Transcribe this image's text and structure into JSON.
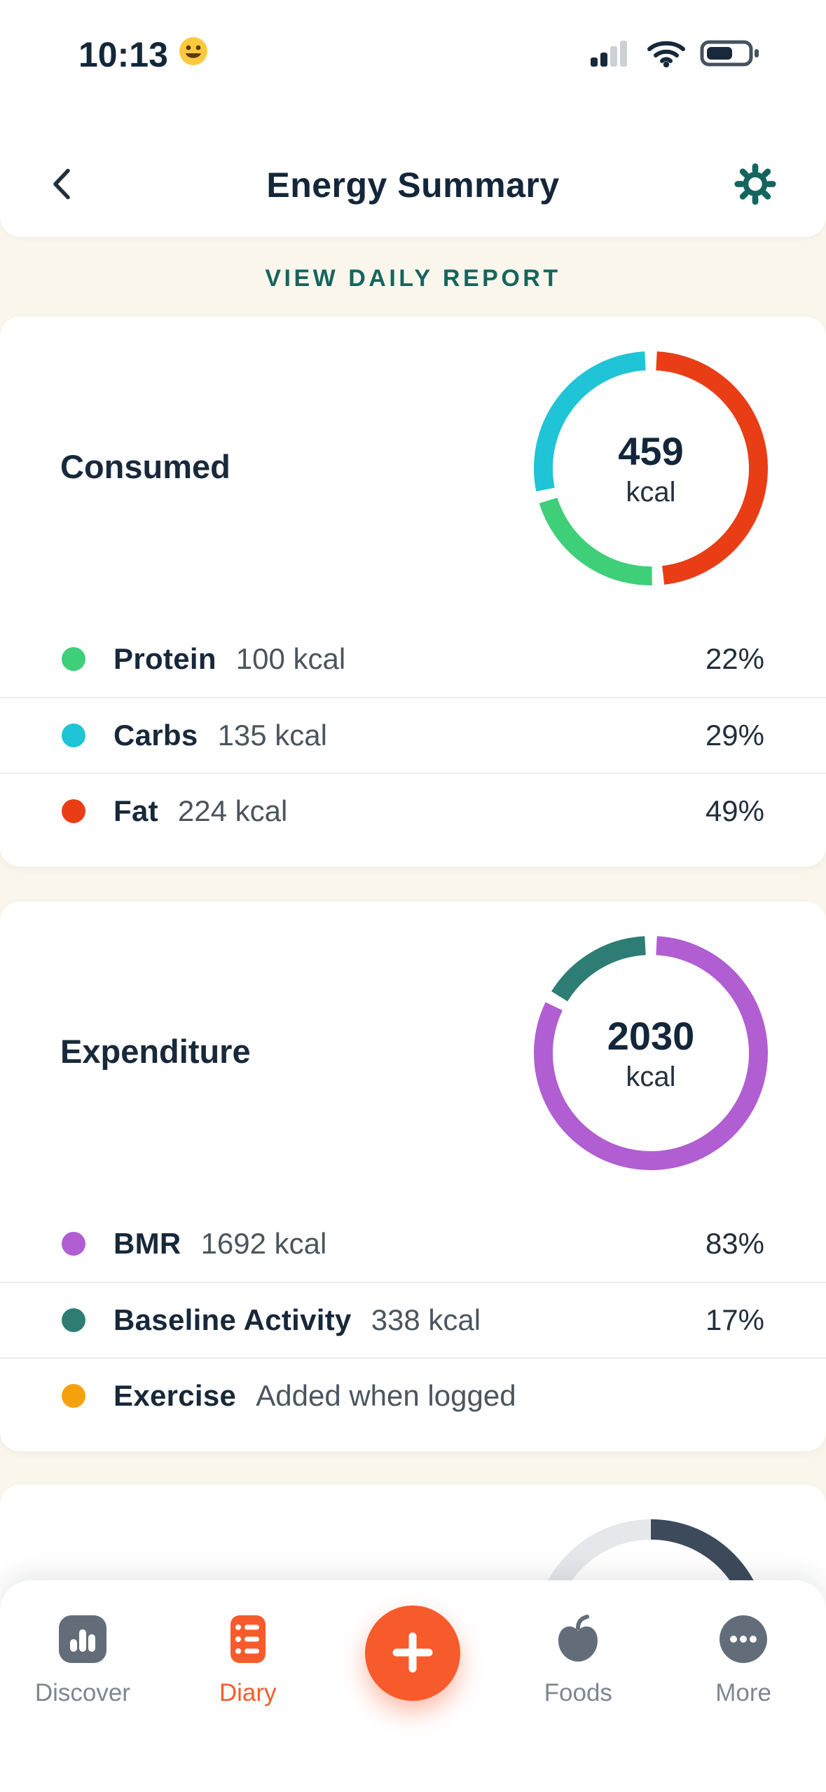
{
  "status_bar": {
    "time": "10:13",
    "emoji": "😀"
  },
  "header": {
    "title": "Energy Summary"
  },
  "report_link": {
    "label": "VIEW DAILY REPORT"
  },
  "cards": {
    "consumed": {
      "title": "Consumed",
      "center_value": "459",
      "center_unit": "kcal",
      "legend": [
        {
          "name": "Protein",
          "value": "100 kcal",
          "percent": "22%",
          "color": "#3ecf78"
        },
        {
          "name": "Carbs",
          "value": "135 kcal",
          "percent": "29%",
          "color": "#1fc4d6"
        },
        {
          "name": "Fat",
          "value": "224 kcal",
          "percent": "49%",
          "color": "#e93d16"
        }
      ]
    },
    "expenditure": {
      "title": "Expenditure",
      "center_value": "2030",
      "center_unit": "kcal",
      "legend": [
        {
          "name": "BMR",
          "value": "1692 kcal",
          "percent": "83%",
          "color": "#b05ed2"
        },
        {
          "name": "Baseline Activity",
          "value": "338 kcal",
          "percent": "17%",
          "color": "#2e7d74"
        },
        {
          "name": "Exercise",
          "value": "Added when logged",
          "percent": "",
          "color": "#f5a10e"
        }
      ]
    }
  },
  "tab_bar": {
    "items": [
      {
        "label": "Discover",
        "active": false
      },
      {
        "label": "Diary",
        "active": true
      },
      {
        "label": "Foods",
        "active": false
      },
      {
        "label": "More",
        "active": false
      }
    ],
    "active_color": "#f75b2c"
  },
  "colors": {
    "background": "#faf6ec",
    "card": "#ffffff",
    "accent_teal": "#15655e",
    "text_dark": "#16283a",
    "text_gray": "#4b555f",
    "tab_gray": "#7d8692",
    "fab_orange": "#f75b2c"
  },
  "chart_data": [
    {
      "id": "consumed-donut",
      "type": "pie",
      "title": "Consumed",
      "center_label": "459 kcal",
      "total_kcal": 459,
      "stroke": 27,
      "gap_degrees": 6,
      "segments": [
        {
          "label": "Fat",
          "value_kcal": 224,
          "percent": 49,
          "color": "#e93d16"
        },
        {
          "label": "Protein",
          "value_kcal": 100,
          "percent": 22,
          "color": "#3ecf78"
        },
        {
          "label": "Carbs",
          "value_kcal": 135,
          "percent": 29,
          "color": "#1fc4d6"
        }
      ]
    },
    {
      "id": "expenditure-donut",
      "type": "pie",
      "title": "Expenditure",
      "center_label": "2030 kcal",
      "total_kcal": 2030,
      "stroke": 27,
      "gap_degrees": 6,
      "segments": [
        {
          "label": "BMR",
          "value_kcal": 1692,
          "percent": 83,
          "color": "#b05ed2"
        },
        {
          "label": "Baseline Activity",
          "value_kcal": 338,
          "percent": 17,
          "color": "#2e7d74"
        }
      ]
    },
    {
      "id": "preview-gauge",
      "type": "pie",
      "title": "",
      "note": "partially visible card at bottom of scroll area",
      "stroke": 29,
      "gap_degrees": 0,
      "segments": [
        {
          "label": "filled",
          "percent": 45,
          "color": "#3d4a5c"
        },
        {
          "label": "remaining",
          "percent": 55,
          "color": "#e6e7ea"
        }
      ]
    }
  ]
}
